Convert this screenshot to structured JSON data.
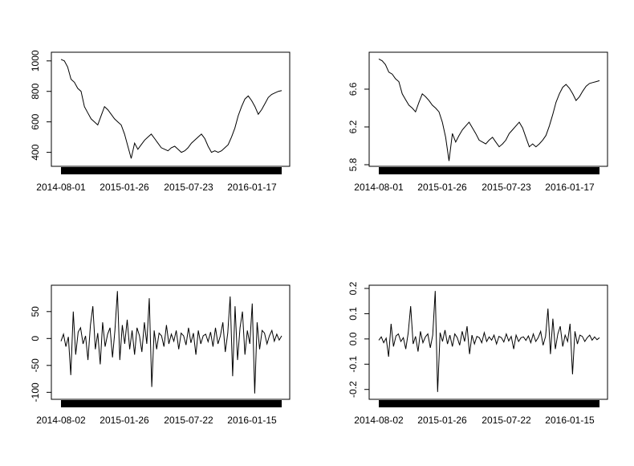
{
  "chart_data": [
    {
      "type": "line",
      "title": "",
      "xlabel": "",
      "ylabel": "",
      "x_tick_labels": [
        "2014-08-01",
        "2015-01-26",
        "2015-07-23",
        "2016-01-17"
      ],
      "y_ticks": [
        400,
        600,
        800,
        1000
      ],
      "y_tick_labels": [
        "400",
        "600",
        "800",
        "1000"
      ],
      "ylim": [
        340,
        1020
      ],
      "x_start": "2014-08-01",
      "x_end": "2016-07-01",
      "series": [
        {
          "values": [
            1010,
            1000,
            960,
            880,
            860,
            820,
            800,
            700,
            660,
            620,
            600,
            580,
            640,
            700,
            680,
            650,
            620,
            600,
            580,
            520,
            440,
            360,
            460,
            420,
            450,
            480,
            500,
            520,
            490,
            460,
            430,
            420,
            410,
            430,
            440,
            420,
            400,
            410,
            430,
            460,
            480,
            500,
            520,
            490,
            440,
            400,
            410,
            400,
            410,
            430,
            450,
            500,
            560,
            640,
            700,
            750,
            770,
            740,
            700,
            650,
            680,
            720,
            760,
            780,
            790,
            800,
            805
          ]
        }
      ]
    },
    {
      "type": "line",
      "title": "",
      "xlabel": "",
      "ylabel": "",
      "x_tick_labels": [
        "2014-08-01",
        "2015-01-26",
        "2015-07-23",
        "2016-01-17"
      ],
      "y_ticks": [
        5.8,
        6.2,
        6.6
      ],
      "y_tick_labels": [
        "5.8",
        "6.2",
        "6.6"
      ],
      "ylim": [
        5.8,
        6.94
      ],
      "x_start": "2014-08-01",
      "x_end": "2016-07-01",
      "series": [
        {
          "values": [
            6.92,
            6.9,
            6.86,
            6.78,
            6.76,
            6.71,
            6.68,
            6.55,
            6.49,
            6.43,
            6.4,
            6.36,
            6.46,
            6.55,
            6.52,
            6.48,
            6.43,
            6.4,
            6.36,
            6.25,
            6.09,
            5.84,
            6.13,
            6.04,
            6.11,
            6.17,
            6.21,
            6.25,
            6.19,
            6.13,
            6.06,
            6.04,
            6.02,
            6.06,
            6.09,
            6.04,
            5.99,
            6.02,
            6.06,
            6.13,
            6.17,
            6.21,
            6.25,
            6.19,
            6.09,
            5.99,
            6.02,
            5.99,
            6.02,
            6.06,
            6.11,
            6.21,
            6.33,
            6.46,
            6.55,
            6.62,
            6.65,
            6.61,
            6.55,
            6.48,
            6.52,
            6.58,
            6.63,
            6.66,
            6.67,
            6.68,
            6.69
          ]
        }
      ]
    },
    {
      "type": "line",
      "title": "",
      "xlabel": "",
      "ylabel": "",
      "x_tick_labels": [
        "2014-08-02",
        "2015-01-26",
        "2015-07-22",
        "2016-01-15"
      ],
      "y_ticks": [
        -100,
        -50,
        0,
        50
      ],
      "y_tick_labels": [
        "-100",
        "-50",
        "0",
        "50"
      ],
      "ylim": [
        -104,
        90
      ],
      "x_start": "2014-08-02",
      "x_end": "2016-07-01",
      "series": [
        {
          "values": [
            -5,
            8,
            -15,
            3,
            -68,
            50,
            -30,
            12,
            20,
            -10,
            5,
            -40,
            25,
            60,
            -20,
            10,
            -48,
            30,
            -15,
            8,
            20,
            -35,
            15,
            88,
            -40,
            25,
            -10,
            35,
            -20,
            15,
            -30,
            20,
            5,
            -25,
            30,
            -10,
            75,
            -90,
            15,
            -20,
            10,
            5,
            -15,
            25,
            -10,
            8,
            -5,
            15,
            -20,
            10,
            5,
            -12,
            20,
            -8,
            10,
            -30,
            15,
            -10,
            5,
            8,
            -6,
            12,
            -15,
            20,
            -10,
            5,
            30,
            -25,
            10,
            78,
            -70,
            60,
            -40,
            20,
            50,
            -30,
            15,
            -10,
            65,
            -102,
            30,
            -20,
            15,
            10,
            -10,
            5,
            15,
            -5,
            8,
            -3,
            5
          ]
        }
      ]
    },
    {
      "type": "line",
      "title": "",
      "xlabel": "",
      "ylabel": "",
      "x_tick_labels": [
        "2014-08-02",
        "2015-01-26",
        "2015-07-22",
        "2016-01-15"
      ],
      "y_ticks": [
        -0.2,
        -0.1,
        0.0,
        0.1,
        0.2
      ],
      "y_tick_labels": [
        "-0.2",
        "-0.1",
        "0.0",
        "0.1",
        "0.2"
      ],
      "ylim": [
        -0.22,
        0.2
      ],
      "x_start": "2014-08-02",
      "x_end": "2016-07-01",
      "series": [
        {
          "values": [
            -0.005,
            0.008,
            -0.015,
            0.003,
            -0.07,
            0.06,
            -0.03,
            0.012,
            0.02,
            -0.01,
            0.005,
            -0.04,
            0.025,
            0.13,
            -0.02,
            0.01,
            -0.05,
            0.03,
            -0.015,
            0.008,
            0.02,
            -0.035,
            0.015,
            0.19,
            -0.21,
            0.025,
            -0.01,
            0.035,
            -0.02,
            0.015,
            -0.03,
            0.02,
            0.005,
            -0.025,
            0.03,
            -0.01,
            0.05,
            -0.06,
            0.015,
            -0.02,
            0.01,
            0.005,
            -0.015,
            0.025,
            -0.01,
            0.008,
            -0.005,
            0.015,
            -0.02,
            0.01,
            0.005,
            -0.012,
            0.02,
            -0.008,
            0.01,
            -0.04,
            0.015,
            -0.01,
            0.005,
            0.008,
            -0.006,
            0.012,
            -0.015,
            0.02,
            -0.01,
            0.005,
            0.03,
            -0.025,
            0.01,
            0.12,
            -0.06,
            0.08,
            -0.04,
            0.02,
            0.05,
            -0.03,
            0.015,
            -0.01,
            0.06,
            -0.14,
            0.03,
            -0.02,
            0.015,
            0.01,
            -0.01,
            0.005,
            0.015,
            -0.005,
            0.008,
            -0.003,
            0.005
          ]
        }
      ]
    }
  ]
}
